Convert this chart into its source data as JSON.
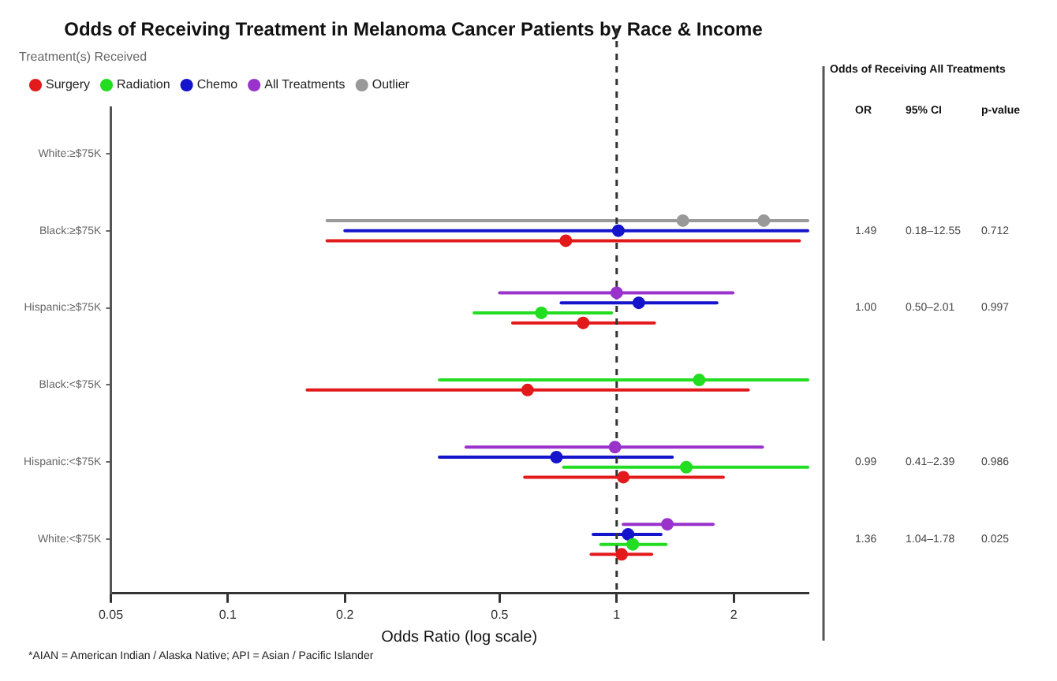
{
  "chart_data": {
    "type": "scatter",
    "orientation": "horizontal",
    "title": "Odds of Receiving Treatment in Melanoma Cancer Patients by Race & Income",
    "xlabel": "Odds Ratio (log scale)",
    "legend_title": "Treatment(s) Received",
    "legend": "top",
    "log": "x",
    "marker": "circle",
    "categories": [
      "White:≥$75K",
      "Black:≥$75K",
      "Hispanic:≥$75K",
      "Black:<$75K",
      "Hispanic:<$75K",
      "White:<$75K"
    ],
    "xlim": [
      0.05,
      3.1
    ],
    "xticks": [
      0.05,
      0.1,
      0.2,
      0.5,
      1,
      2
    ],
    "series": [
      {
        "name": "Surgery",
        "color": "#e31a1c",
        "values": [
          null,
          0.74,
          0.82,
          0.59,
          1.04,
          1.03
        ],
        "errors": [
          null,
          [
            0.18,
            2.95
          ],
          [
            0.54,
            1.25
          ],
          [
            0.16,
            2.18
          ],
          [
            0.58,
            1.88
          ],
          [
            0.86,
            1.23
          ]
        ]
      },
      {
        "name": "Radiation",
        "color": "#22dd22",
        "values": [
          null,
          null,
          0.64,
          1.63,
          1.51,
          1.1
        ],
        "errors": [
          null,
          null,
          [
            0.43,
            0.97
          ],
          [
            0.35,
            3.1
          ],
          [
            0.73,
            3.1
          ],
          [
            0.91,
            1.34
          ]
        ]
      },
      {
        "name": "Chemo",
        "color": "#1414cc",
        "values": [
          null,
          1.01,
          1.14,
          null,
          0.7,
          1.07
        ],
        "errors": [
          null,
          [
            0.2,
            3.1
          ],
          [
            0.72,
            1.81
          ],
          null,
          [
            0.35,
            1.39
          ],
          [
            0.87,
            1.3
          ]
        ]
      },
      {
        "name": "All Treatments",
        "color": "#9933cc",
        "values": [
          null,
          null,
          1.0,
          null,
          0.99,
          1.35
        ],
        "errors": [
          null,
          null,
          [
            0.5,
            1.99
          ],
          null,
          [
            0.41,
            2.37
          ],
          [
            1.04,
            1.77
          ]
        ]
      },
      {
        "name": "Outlier",
        "color": "#999999",
        "values": [
          null,
          1.48,
          null,
          null,
          null,
          null
        ],
        "errors": [
          null,
          [
            0.18,
            3.1
          ],
          null,
          null,
          null,
          null
        ]
      },
      {
        "color": "#999999",
        "values": [
          null,
          2.39,
          null,
          null,
          null,
          null
        ]
      }
    ],
    "ref_lines": [
      {
        "axis": "x",
        "value": 1,
        "line_style": "dashed",
        "color": "#333333"
      }
    ],
    "annotations": [
      "Odds of Receiving All Treatments",
      "OR",
      "95% CI",
      "p-value",
      "1.49",
      "0.18–12.55",
      "0.712",
      "1.00",
      "0.50–2.01",
      "0.997",
      "0.99",
      "0.41–2.39",
      "0.986",
      "1.36",
      "1.04–1.78",
      "0.025",
      "*AIAN = American Indian / Alaska Native; API = Asian / Pacific Islander"
    ]
  }
}
